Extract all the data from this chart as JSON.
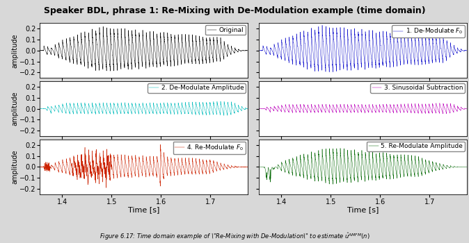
{
  "title": "Speaker BDL, phrase 1: Re-Mixing with De-Modulation example (time domain)",
  "caption": "Figure 6.17: Time domain example of \"Re-Mixing with De-Modulation\" to estimate $\\hat{u}^{AMFM}(n)$",
  "xlim": [
    1.355,
    1.775
  ],
  "ylim": [
    -0.25,
    0.25
  ],
  "yticks": [
    -0.2,
    -0.1,
    0.0,
    0.1,
    0.2
  ],
  "xticks": [
    1.4,
    1.5,
    1.6,
    1.7
  ],
  "xlabel": "Time [s]",
  "ylabel": "amplitude",
  "colors": {
    "original": "#000000",
    "demod_f0": "#1111cc",
    "demod_amp": "#00bbbb",
    "sin_sub": "#bb00bb",
    "remod_f0": "#cc2200",
    "remod_amp": "#006600"
  },
  "legend_labels": {
    "original": "Original",
    "demod_f0": "1. De-Modulate $F_0$",
    "demod_amp": "2. De-Modulate Amplitude",
    "sin_sub": "3. Sinusoidal Subtraction",
    "remod_f0": "4. Re-Modulate $F_0$",
    "remod_amp": "5. Re-Modulate Amplitude"
  },
  "background_color": "#d8d8d8",
  "panel_bg": "#ffffff",
  "title_fontsize": 9,
  "axis_fontsize": 7,
  "legend_fontsize": 6.5
}
